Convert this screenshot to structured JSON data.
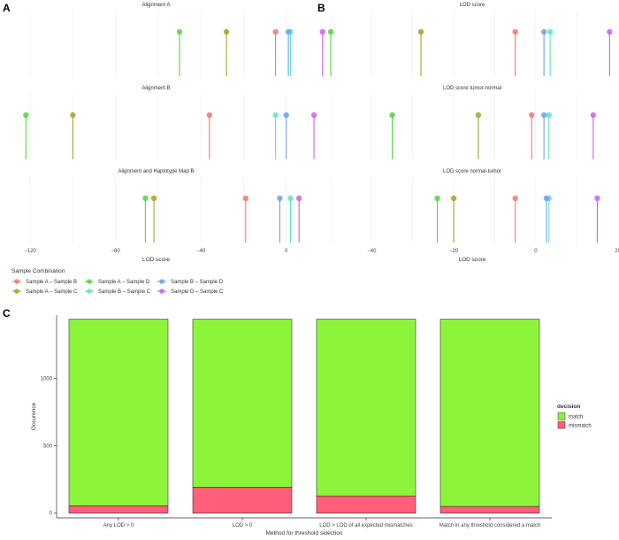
{
  "panel_labels": [
    "A",
    "B",
    "C"
  ],
  "chart_data": [
    {
      "type": "scatter",
      "panel": "A",
      "xlabel": "LOD score",
      "xlim": [
        -130,
        8
      ],
      "x_ticks": [
        -120,
        -80,
        -40,
        0
      ],
      "x_tick_labels": [
        "−120",
        "−80",
        "−40",
        "0"
      ],
      "facets": [
        {
          "title": "Alignment A",
          "points": [
            {
              "combo": "A_B",
              "value": -5
            },
            {
              "combo": "A_C",
              "value": -28
            },
            {
              "combo": "A_D",
              "value": -50
            },
            {
              "combo": "B_C",
              "value": 2
            },
            {
              "combo": "B_D",
              "value": 1
            },
            {
              "combo": "D_C",
              "value": 17
            }
          ]
        },
        {
          "title": "Alignment B",
          "points": [
            {
              "combo": "A_B",
              "value": -36
            },
            {
              "combo": "A_C",
              "value": -100
            },
            {
              "combo": "A_D",
              "value": -122
            },
            {
              "combo": "B_C",
              "value": -5
            },
            {
              "combo": "B_D",
              "value": 0
            },
            {
              "combo": "D_C",
              "value": 13
            }
          ]
        },
        {
          "title": "Alignment and Haplotype Map B",
          "points": [
            {
              "combo": "A_B",
              "value": -19
            },
            {
              "combo": "A_C",
              "value": -62
            },
            {
              "combo": "A_D",
              "value": -66
            },
            {
              "combo": "B_C",
              "value": 2
            },
            {
              "combo": "B_D",
              "value": -3
            },
            {
              "combo": "D_C",
              "value": 6
            }
          ]
        }
      ]
    },
    {
      "type": "scatter",
      "panel": "B",
      "xlabel": "LOD score",
      "xlim": [
        -50,
        19
      ],
      "x_ticks": [
        -40,
        -20,
        0,
        20
      ],
      "x_tick_labels": [
        "−40",
        "−20",
        "0",
        "20"
      ],
      "facets": [
        {
          "title": "LOD score",
          "points": [
            {
              "combo": "A_B",
              "value": -5
            },
            {
              "combo": "A_C",
              "value": -28
            },
            {
              "combo": "A_D",
              "value": -50
            },
            {
              "combo": "B_C",
              "value": 3.5
            },
            {
              "combo": "B_D",
              "value": 2
            },
            {
              "combo": "D_C",
              "value": 18
            }
          ]
        },
        {
          "title": "LOD score tumor-normal",
          "points": [
            {
              "combo": "A_B",
              "value": -1
            },
            {
              "combo": "A_C",
              "value": -14
            },
            {
              "combo": "A_D",
              "value": -35
            },
            {
              "combo": "B_C",
              "value": 3.2
            },
            {
              "combo": "B_D",
              "value": 2
            },
            {
              "combo": "D_C",
              "value": 14
            }
          ]
        },
        {
          "title": "LOD score normal-tumor",
          "points": [
            {
              "combo": "A_B",
              "value": -5
            },
            {
              "combo": "A_C",
              "value": -20
            },
            {
              "combo": "A_D",
              "value": -24
            },
            {
              "combo": "B_C",
              "value": 3.2
            },
            {
              "combo": "B_D",
              "value": 2.6
            },
            {
              "combo": "D_C",
              "value": 15
            }
          ]
        }
      ]
    },
    {
      "type": "bar",
      "stacked": true,
      "panel": "C",
      "xlabel": "Method for threshold selection",
      "ylabel": "Occurence",
      "ylim": [
        -35,
        1470
      ],
      "y_ticks": [
        0,
        500,
        1000
      ],
      "categories": [
        "Any LOD > 0",
        "LOD > 0",
        "LOD > LOD of all expected mismatches",
        "Match in any threshold considered a match"
      ],
      "series": [
        {
          "name": "mismatch",
          "values": [
            55,
            193,
            128,
            50
          ]
        },
        {
          "name": "match",
          "values": [
            1385,
            1247,
            1312,
            1390
          ]
        }
      ],
      "legend_title": "decision",
      "legend_position": "right"
    }
  ],
  "legend": {
    "title": "Sample Combination",
    "position": "bottom-left",
    "entries": [
      {
        "key": "A_B",
        "label": "Sample A – Sample B",
        "color": "#F8766D"
      },
      {
        "key": "A_D",
        "label": "Sample A – Sample D",
        "color": "#53D63A"
      },
      {
        "key": "B_D",
        "label": "Sample B – Sample D",
        "color": "#6FA0F0"
      },
      {
        "key": "A_C",
        "label": "Sample A – Sample C",
        "color": "#A6A12C"
      },
      {
        "key": "B_C",
        "label": "Sample B – Sample C",
        "color": "#5CE5C0"
      },
      {
        "key": "D_C",
        "label": "Sample D – Sample C",
        "color": "#D15FF0"
      }
    ]
  },
  "bar_colors": {
    "match": "#8CF53A",
    "mismatch": "#FF5F78"
  }
}
